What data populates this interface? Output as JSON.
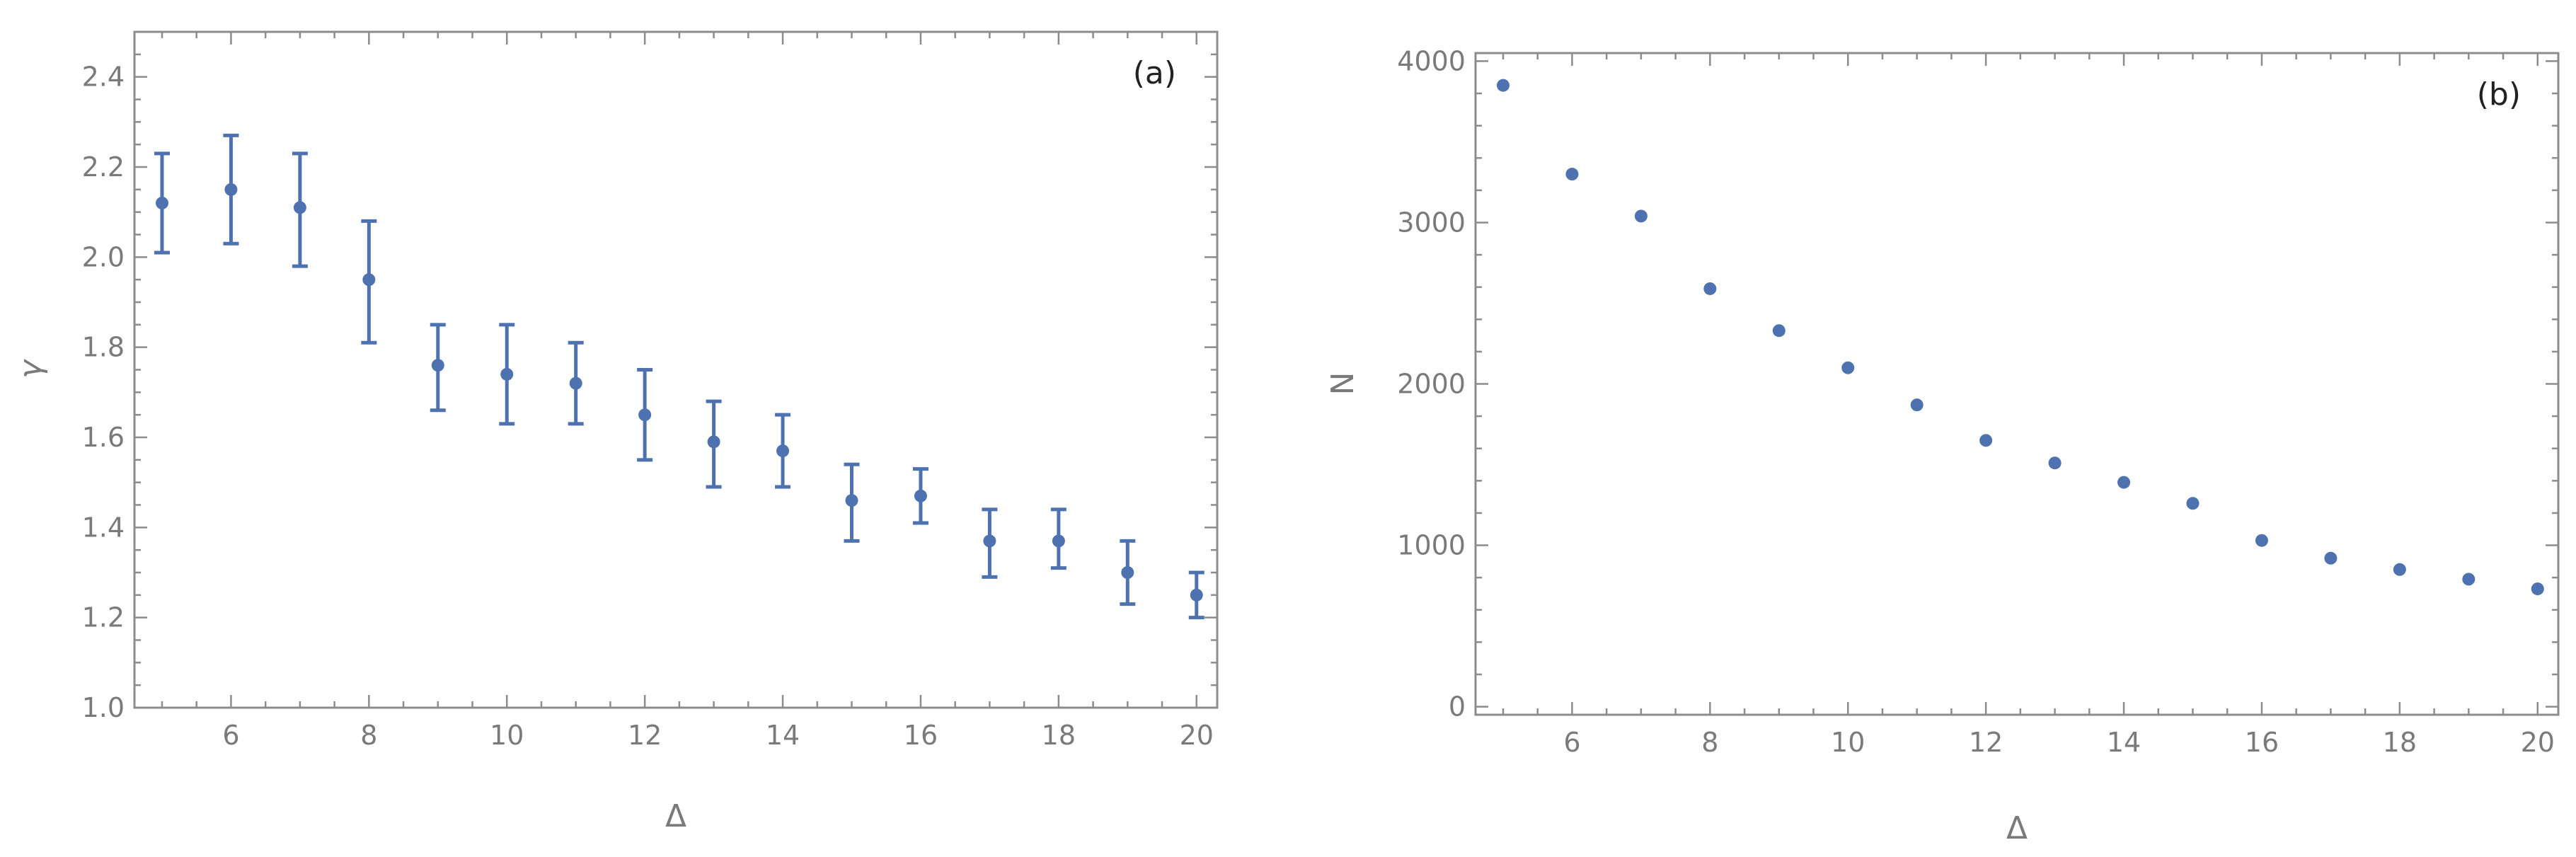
{
  "chart_data": [
    {
      "type": "scatter",
      "panel_tag": "(a)",
      "xlabel": "Δ",
      "ylabel": "γ",
      "xlim": [
        4.6,
        20.3
      ],
      "ylim": [
        1.0,
        2.5
      ],
      "xticks": [
        6,
        8,
        10,
        12,
        14,
        16,
        18,
        20
      ],
      "xtick_labels": [
        "6",
        "8",
        "10",
        "12",
        "14",
        "16",
        "18",
        "20"
      ],
      "yticks": [
        1.0,
        1.2,
        1.4,
        1.6,
        1.8,
        2.0,
        2.2,
        2.4
      ],
      "ytick_labels": [
        "1.0",
        "1.2",
        "1.4",
        "1.6",
        "1.8",
        "2.0",
        "2.2",
        "2.4"
      ],
      "grid": false,
      "error_bars": true,
      "color": "#4e72b0",
      "x": [
        5,
        6,
        7,
        8,
        9,
        10,
        11,
        12,
        13,
        14,
        15,
        16,
        17,
        18,
        19,
        20
      ],
      "y": [
        2.12,
        2.15,
        2.11,
        1.95,
        1.76,
        1.74,
        1.72,
        1.65,
        1.59,
        1.57,
        1.46,
        1.47,
        1.37,
        1.37,
        1.3,
        1.25
      ],
      "y_low": [
        2.01,
        2.03,
        1.98,
        1.81,
        1.66,
        1.63,
        1.63,
        1.55,
        1.49,
        1.49,
        1.37,
        1.41,
        1.29,
        1.31,
        1.23,
        1.2
      ],
      "y_high": [
        2.23,
        2.27,
        2.23,
        2.08,
        1.85,
        1.85,
        1.81,
        1.75,
        1.68,
        1.65,
        1.54,
        1.53,
        1.44,
        1.44,
        1.37,
        1.3
      ]
    },
    {
      "type": "scatter",
      "panel_tag": "(b)",
      "xlabel": "Δ",
      "ylabel": "N",
      "xlim": [
        4.6,
        20.3
      ],
      "ylim": [
        -50,
        4050
      ],
      "xticks": [
        6,
        8,
        10,
        12,
        14,
        16,
        18,
        20
      ],
      "xtick_labels": [
        "6",
        "8",
        "10",
        "12",
        "14",
        "16",
        "18",
        "20"
      ],
      "yticks": [
        0,
        1000,
        2000,
        3000,
        4000
      ],
      "ytick_labels": [
        "0",
        "1000",
        "2000",
        "3000",
        "4000"
      ],
      "grid": false,
      "error_bars": false,
      "color": "#4e72b0",
      "x": [
        5,
        6,
        7,
        8,
        9,
        10,
        11,
        12,
        13,
        14,
        15,
        16,
        17,
        18,
        19,
        20
      ],
      "y": [
        3850,
        3300,
        3040,
        2590,
        2330,
        2100,
        1870,
        1650,
        1510,
        1390,
        1260,
        1030,
        920,
        850,
        790,
        730
      ]
    }
  ]
}
